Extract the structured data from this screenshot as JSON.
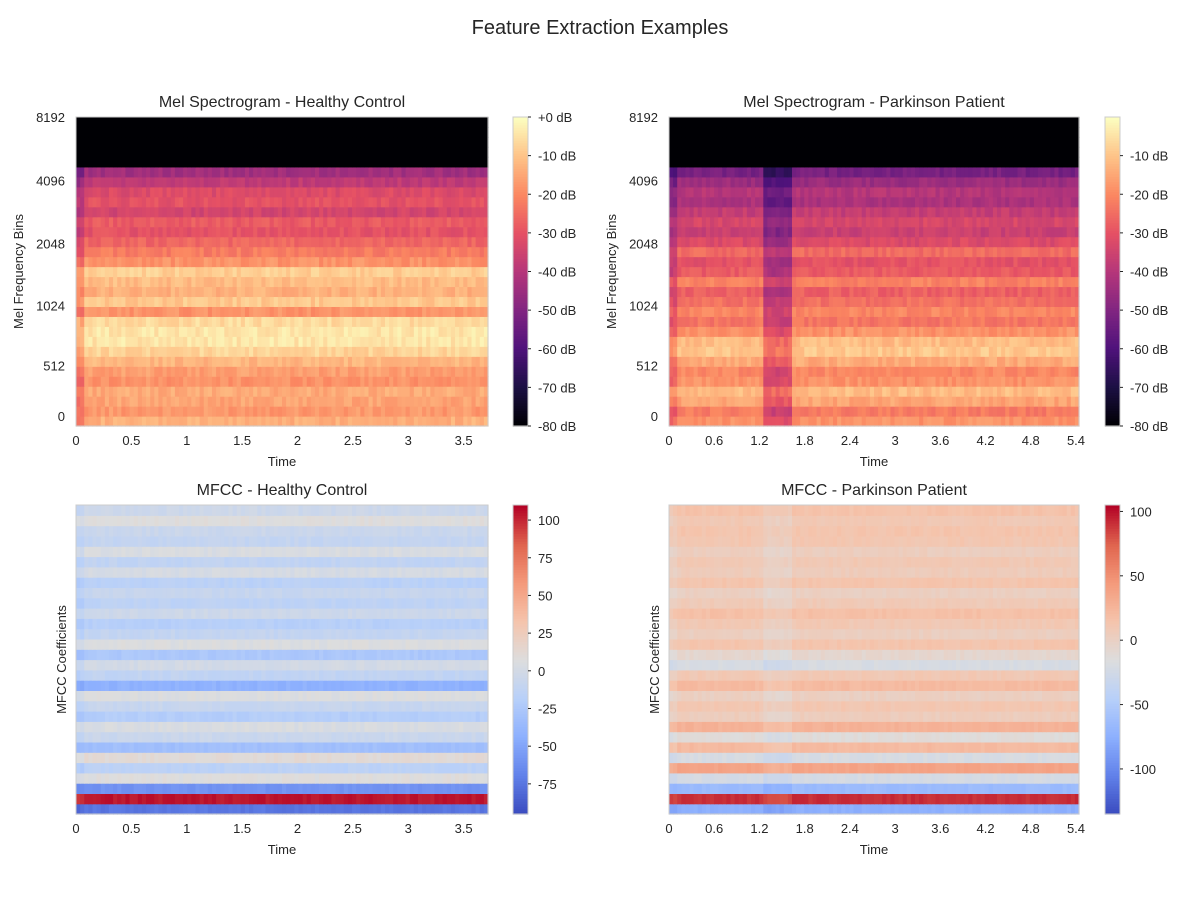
{
  "figure": {
    "title": "Feature Extraction Examples"
  },
  "colormaps": {
    "magma": [
      "#000004",
      "#1c1044",
      "#4f127b",
      "#812581",
      "#b5367a",
      "#e55064",
      "#fb8761",
      "#fec287",
      "#fcfdbf"
    ],
    "coolwarm": [
      "#3b4cc0",
      "#6282ea",
      "#8db0fe",
      "#b8d0f9",
      "#dddddd",
      "#f5c4ac",
      "#f49a7b",
      "#e0654f",
      "#b40426"
    ]
  },
  "chart_data": [
    {
      "type": "heatmap",
      "title": "Mel Spectrogram - Healthy Control",
      "xlabel": "Time",
      "ylabel": "Mel Frequency Bins",
      "xlim": [
        0,
        3.72
      ],
      "xticks": [
        0,
        0.5,
        1,
        1.5,
        2,
        2.5,
        3,
        3.5
      ],
      "xtick_labels": [
        "0",
        "0.5",
        "1",
        "1.5",
        "2",
        "2.5",
        "3",
        "3.5"
      ],
      "yticks": [
        "0",
        "512",
        "1024",
        "2048",
        "4096",
        "8192"
      ],
      "colormap": "magma",
      "colorbar": {
        "range": [
          -80,
          0
        ],
        "ticks": [
          0,
          -10,
          -20,
          -30,
          -40,
          -50,
          -60,
          -70,
          -80
        ],
        "tick_labels": [
          "+0 dB",
          "-10 dB",
          "-20 dB",
          "-30 dB",
          "-40 dB",
          "-50 dB",
          "-60 dB",
          "-70 dB",
          "-80 dB"
        ]
      },
      "band_values_db": [
        -13,
        -17,
        -15,
        -14,
        -18,
        -16,
        -12,
        -7,
        -4,
        -4,
        -6,
        -18,
        -9,
        -13,
        -11,
        -8,
        -18,
        -22,
        -26,
        -30,
        -28,
        -34,
        -30,
        -32,
        -38,
        -44,
        -80,
        -80,
        -80,
        -80,
        -80
      ]
    },
    {
      "type": "heatmap",
      "title": "Mel Spectrogram - Parkinson Patient",
      "xlabel": "Time",
      "ylabel": "Mel Frequency Bins",
      "xlim": [
        0,
        5.44
      ],
      "xticks": [
        0,
        0.6,
        1.2,
        1.8,
        2.4,
        3,
        3.6,
        4.2,
        4.8,
        5.4
      ],
      "xtick_labels": [
        "0",
        "0.6",
        "1.2",
        "1.8",
        "2.4",
        "3",
        "3.6",
        "4.2",
        "4.8",
        "5.4"
      ],
      "yticks": [
        "0",
        "512",
        "1024",
        "2048",
        "4096",
        "8192"
      ],
      "colormap": "magma",
      "colorbar": {
        "range": [
          -80,
          0
        ],
        "ticks": [
          -10,
          -20,
          -30,
          -40,
          -50,
          -60,
          -70,
          -80
        ],
        "tick_labels": [
          "-10 dB",
          "-20 dB",
          "-30 dB",
          "-40 dB",
          "-50 dB",
          "-60 dB",
          "-70 dB",
          "-80 dB"
        ]
      },
      "band_values_db": [
        -18,
        -22,
        -15,
        -11,
        -18,
        -20,
        -14,
        -9,
        -11,
        -18,
        -23,
        -20,
        -24,
        -27,
        -21,
        -28,
        -30,
        -25,
        -32,
        -36,
        -33,
        -37,
        -42,
        -40,
        -45,
        -52,
        -80,
        -80,
        -80,
        -80,
        -80
      ]
    },
    {
      "type": "heatmap",
      "title": "MFCC - Healthy Control",
      "xlabel": "Time",
      "ylabel": "MFCC Coefficients",
      "xlim": [
        0,
        3.72
      ],
      "xticks": [
        0,
        0.5,
        1,
        1.5,
        2,
        2.5,
        3,
        3.5
      ],
      "xtick_labels": [
        "0",
        "0.5",
        "1",
        "1.5",
        "2",
        "2.5",
        "3",
        "3.5"
      ],
      "colormap": "coolwarm",
      "colorbar": {
        "range": [
          -95,
          110
        ],
        "ticks": [
          100,
          75,
          50,
          25,
          0,
          -25,
          -50,
          -75
        ],
        "tick_labels": [
          "100",
          "75",
          "50",
          "25",
          "0",
          "-25",
          "-50",
          "-75"
        ]
      },
      "band_values": [
        -75,
        105,
        -60,
        8,
        -15,
        12,
        -32,
        -6,
        4,
        -20,
        -8,
        6,
        -42,
        -12,
        0,
        -25,
        6,
        -10,
        -18,
        -4,
        -14,
        -8,
        -16,
        2,
        -12,
        4,
        -10,
        -6,
        8,
        -4
      ]
    },
    {
      "type": "heatmap",
      "title": "MFCC - Parkinson Patient",
      "xlabel": "Time",
      "ylabel": "MFCC Coefficients",
      "xlim": [
        0,
        5.44
      ],
      "xticks": [
        0,
        0.6,
        1.2,
        1.8,
        2.4,
        3,
        3.6,
        4.2,
        4.8,
        5.4
      ],
      "xtick_labels": [
        "0",
        "0.6",
        "1.2",
        "1.8",
        "2.4",
        "3",
        "3.6",
        "4.2",
        "4.8",
        "5.4"
      ],
      "colormap": "coolwarm",
      "colorbar": {
        "range": [
          -135,
          105
        ],
        "ticks": [
          100,
          50,
          0,
          -50,
          -100
        ],
        "tick_labels": [
          "100",
          "50",
          "0",
          "-50",
          "-100"
        ]
      },
      "band_values": [
        -75,
        92,
        -65,
        -22,
        38,
        -20,
        22,
        -12,
        28,
        5,
        12,
        2,
        22,
        10,
        -20,
        -6,
        14,
        3,
        10,
        18,
        8,
        2,
        14,
        6,
        10,
        4,
        12,
        14,
        10,
        16
      ]
    }
  ]
}
